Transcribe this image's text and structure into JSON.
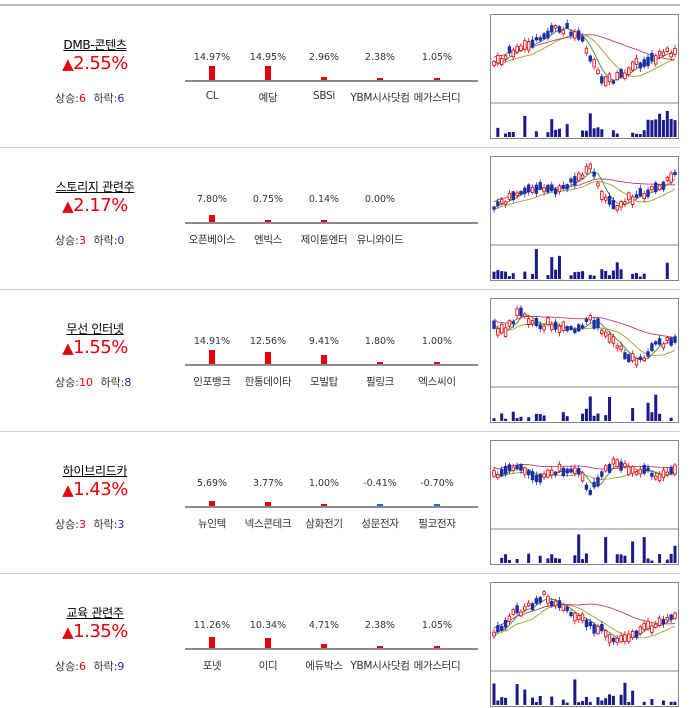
{
  "themes": [
    {
      "name": "DMB-콘텐츠",
      "rate": "2.55%",
      "up_label": "상승:",
      "up_count": "6",
      "down_label": "하락:",
      "down_count": "6",
      "stocks": [
        {
          "name": "CL",
          "change": "14.97%",
          "value": 14.97
        },
        {
          "name": "예당",
          "change": "14.95%",
          "value": 14.95
        },
        {
          "name": "SBSi",
          "change": "2.96%",
          "value": 2.96
        },
        {
          "name": "YBM시사닷컴",
          "change": "2.38%",
          "value": 2.38
        },
        {
          "name": "메가스터디",
          "change": "1.05%",
          "value": 1.05
        }
      ]
    },
    {
      "name": "스토리지 관련주",
      "rate": "2.17%",
      "up_label": "상승:",
      "up_count": "3",
      "down_label": "하락:",
      "down_count": "0",
      "stocks": [
        {
          "name": "오픈베이스",
          "change": "7.80%",
          "value": 7.8
        },
        {
          "name": "엔빅스",
          "change": "0.75%",
          "value": 0.75
        },
        {
          "name": "제이튠엔터",
          "change": "0.14%",
          "value": 0.14
        },
        {
          "name": "유니와이드",
          "change": "0.00%",
          "value": 0.0
        }
      ]
    },
    {
      "name": "무선 인터넷",
      "rate": "1.55%",
      "up_label": "상승:",
      "up_count": "10",
      "down_label": "하락:",
      "down_count": "8",
      "stocks": [
        {
          "name": "인포뱅크",
          "change": "14.91%",
          "value": 14.91
        },
        {
          "name": "한통데이타",
          "change": "12.56%",
          "value": 12.56
        },
        {
          "name": "모빌탑",
          "change": "9.41%",
          "value": 9.41
        },
        {
          "name": "필링크",
          "change": "1.80%",
          "value": 1.8
        },
        {
          "name": "엑스씨이",
          "change": "1.00%",
          "value": 1.0
        }
      ]
    },
    {
      "name": "하이브리드카",
      "rate": "1.43%",
      "up_label": "상승:",
      "up_count": "3",
      "down_label": "하락:",
      "down_count": "3",
      "stocks": [
        {
          "name": "뉴인텍",
          "change": "5.69%",
          "value": 5.69
        },
        {
          "name": "넥스콘테크",
          "change": "3.77%",
          "value": 3.77
        },
        {
          "name": "삼화전기",
          "change": "1.00%",
          "value": 1.0
        },
        {
          "name": "성문전자",
          "change": "-0.41%",
          "value": -0.41
        },
        {
          "name": "필코전자",
          "change": "-0.70%",
          "value": -0.7
        }
      ]
    },
    {
      "name": "교육 관련주",
      "rate": "1.35%",
      "up_label": "상승:",
      "up_count": "6",
      "down_label": "하락:",
      "down_count": "9",
      "stocks": [
        {
          "name": "포넷",
          "change": "11.26%",
          "value": 11.26
        },
        {
          "name": "이디",
          "change": "10.34%",
          "value": 10.34
        },
        {
          "name": "에듀박스",
          "change": "4.71%",
          "value": 4.71
        },
        {
          "name": "YBM시사닷컴",
          "change": "2.38%",
          "value": 2.38
        },
        {
          "name": "메가스터디",
          "change": "1.05%",
          "value": 1.05
        }
      ]
    }
  ],
  "colors": {
    "up": "#e8000b",
    "down": "#1a2ea8",
    "neg_bar": "#1a6fd0",
    "ma_short": "#3a8a3a",
    "ma_mid": "#a0a030",
    "ma_long": "#c04060"
  }
}
